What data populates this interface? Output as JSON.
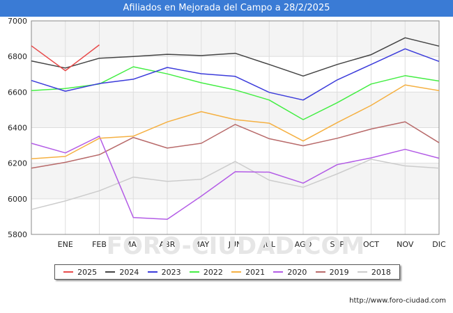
{
  "title": "Afiliados en Mejorada del Campo a 28/2/2025",
  "footer_url": "http://www.foro-ciudad.com",
  "chart_data": {
    "type": "line",
    "categories": [
      "",
      "ENE",
      "FEB",
      "MAR",
      "ABR",
      "MAY",
      "JUN",
      "JUL",
      "AGO",
      "SEP",
      "OCT",
      "NOV",
      "DIC"
    ],
    "yticks": [
      "5800",
      "6000",
      "6200",
      "6400",
      "6600",
      "6800",
      "7000"
    ],
    "ylim": [
      5800,
      7000
    ],
    "grid": true,
    "legend_position": "bottom",
    "series": [
      {
        "name": "2025",
        "color": "#e84a4a",
        "values": [
          6860,
          6720,
          6865,
          null,
          null,
          null,
          null,
          null,
          null,
          null,
          null,
          null,
          null
        ]
      },
      {
        "name": "2024",
        "color": "#444444",
        "values": [
          6775,
          6735,
          6790,
          6800,
          6812,
          6805,
          6818,
          6755,
          6690,
          6755,
          6810,
          6905,
          6858
        ]
      },
      {
        "name": "2023",
        "color": "#3b3bdb",
        "values": [
          6665,
          6605,
          6648,
          6672,
          6738,
          6703,
          6688,
          6598,
          6555,
          6668,
          6755,
          6843,
          6772
        ]
      },
      {
        "name": "2022",
        "color": "#44ee44",
        "values": [
          6608,
          6620,
          6645,
          6742,
          6702,
          6652,
          6612,
          6555,
          6445,
          6540,
          6645,
          6692,
          6662
        ]
      },
      {
        "name": "2021",
        "color": "#f5b041",
        "values": [
          6225,
          6238,
          6340,
          6352,
          6432,
          6490,
          6445,
          6425,
          6325,
          6428,
          6525,
          6640,
          6608
        ]
      },
      {
        "name": "2020",
        "color": "#b35ce6",
        "values": [
          6312,
          6258,
          6352,
          5895,
          5885,
          6015,
          6152,
          6150,
          6088,
          6192,
          6230,
          6278,
          6228
        ]
      },
      {
        "name": "2019",
        "color": "#b86a6a",
        "values": [
          6172,
          6205,
          6248,
          6345,
          6285,
          6312,
          6418,
          6338,
          6298,
          6340,
          6392,
          6433,
          6315
        ]
      },
      {
        "name": "2018",
        "color": "#cccccc",
        "values": [
          5940,
          5988,
          6045,
          6122,
          6098,
          6110,
          6210,
          6105,
          6065,
          6140,
          6222,
          6185,
          6172
        ]
      }
    ]
  }
}
